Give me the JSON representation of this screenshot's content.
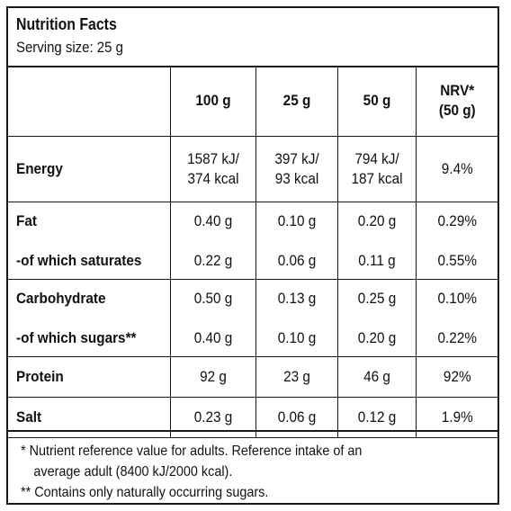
{
  "title": "Nutrition Facts",
  "serving": "Serving size: 25 g",
  "columns": [
    "100 g",
    "25 g",
    "50 g",
    "NRV*",
    "(50 g)"
  ],
  "rows": {
    "energy": {
      "name": "Energy",
      "c100": [
        "1587 kJ/",
        "374 kcal"
      ],
      "c25": [
        "397 kJ/",
        "93 kcal"
      ],
      "c50": [
        "794 kJ/",
        "187 kcal"
      ],
      "nrv": "9.4%"
    },
    "fat": {
      "name": "Fat",
      "c100": "0.40 g",
      "c25": "0.10 g",
      "c50": "0.20 g",
      "nrv": "0.29%"
    },
    "saturates": {
      "name": "-of which saturates",
      "c100": "0.22 g",
      "c25": "0.06 g",
      "c50": "0.11 g",
      "nrv": "0.55%"
    },
    "carbohydrate": {
      "name": "Carbohydrate",
      "c100": "0.50 g",
      "c25": "0.13 g",
      "c50": "0.25 g",
      "nrv": "0.10%"
    },
    "sugars": {
      "name": "-of which sugars**",
      "c100": "0.40 g",
      "c25": "0.10 g",
      "c50": "0.20 g",
      "nrv": "0.22%"
    },
    "protein": {
      "name": "Protein",
      "c100": "92 g",
      "c25": "23 g",
      "c50": "46 g",
      "nrv": "92%"
    },
    "salt": {
      "name": "Salt",
      "c100": "0.23 g",
      "c25": "0.06 g",
      "c50": "0.12 g",
      "nrv": "1.9%"
    }
  },
  "footnotes": {
    "nrv_line1": "* Nutrient reference value for adults. Reference intake of an",
    "nrv_line2": "average adult (8400 kJ/2000 kcal).",
    "sugars": "** Contains only naturally occurring sugars."
  }
}
